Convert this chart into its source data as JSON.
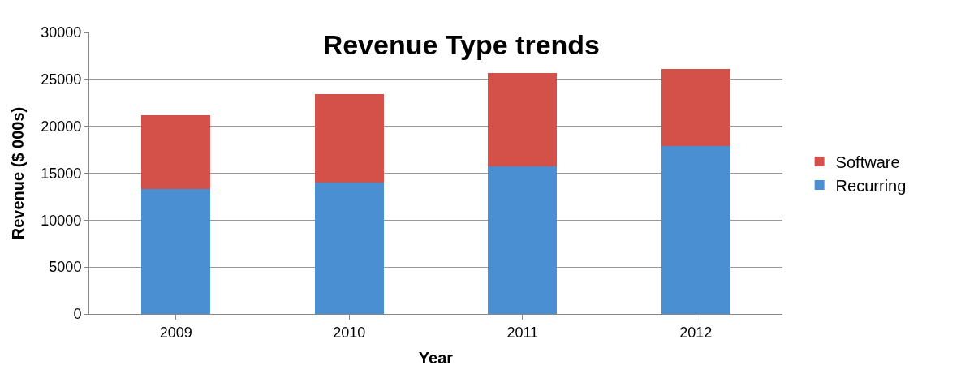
{
  "chart_data": {
    "type": "bar",
    "title": "Revenue Type trends",
    "xlabel": "Year",
    "ylabel": "Revenue ($ 000s)",
    "categories": [
      "2009",
      "2010",
      "2011",
      "2012"
    ],
    "series": [
      {
        "name": "Recurring",
        "color": "#4a8fd1",
        "values": [
          13300,
          14000,
          15700,
          17900
        ]
      },
      {
        "name": "Software",
        "color": "#d4514a",
        "values": [
          7900,
          9400,
          10000,
          8200
        ]
      }
    ],
    "stacked": true,
    "ylim": [
      0,
      30000
    ],
    "yticks": [
      0,
      5000,
      10000,
      15000,
      20000,
      25000,
      30000
    ],
    "grid": "y",
    "legend": "right"
  }
}
